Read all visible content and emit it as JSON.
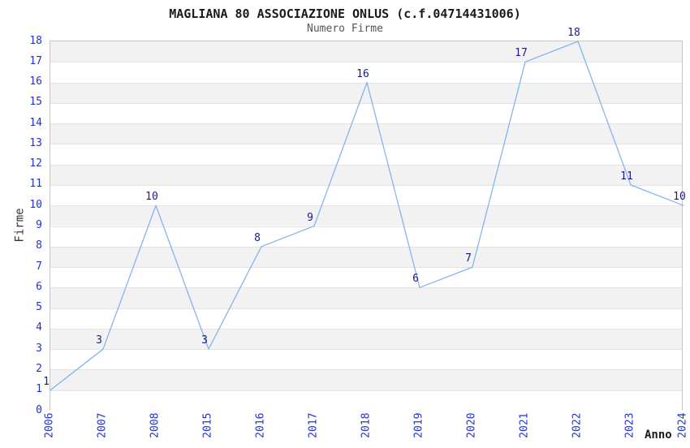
{
  "chart_data": {
    "type": "line",
    "title": "MAGLIANA 80 ASSOCIAZIONE ONLUS (c.f.04714431006)",
    "subtitle": "Numero Firme",
    "xlabel": "Anno",
    "ylabel": "Firme",
    "categories": [
      "2006",
      "2007",
      "2008",
      "2015",
      "2016",
      "2017",
      "2018",
      "2019",
      "2020",
      "2021",
      "2022",
      "2023",
      "2024"
    ],
    "values": [
      1,
      3,
      10,
      3,
      8,
      9,
      16,
      6,
      7,
      17,
      18,
      11,
      10
    ],
    "ylim": [
      0,
      18
    ],
    "ytick_step": 1,
    "grid": "alternating-horizontal-bands",
    "legend": "none",
    "colors": {
      "line": "#85b5e9",
      "point_label": "#1a1a8c",
      "tick_label": "#2233cc",
      "band_gray": "#f2f2f2",
      "band_white": "#ffffff",
      "gridline": "#e3e3e3",
      "title": "#1a1a1a",
      "subtitle": "#555555"
    }
  }
}
